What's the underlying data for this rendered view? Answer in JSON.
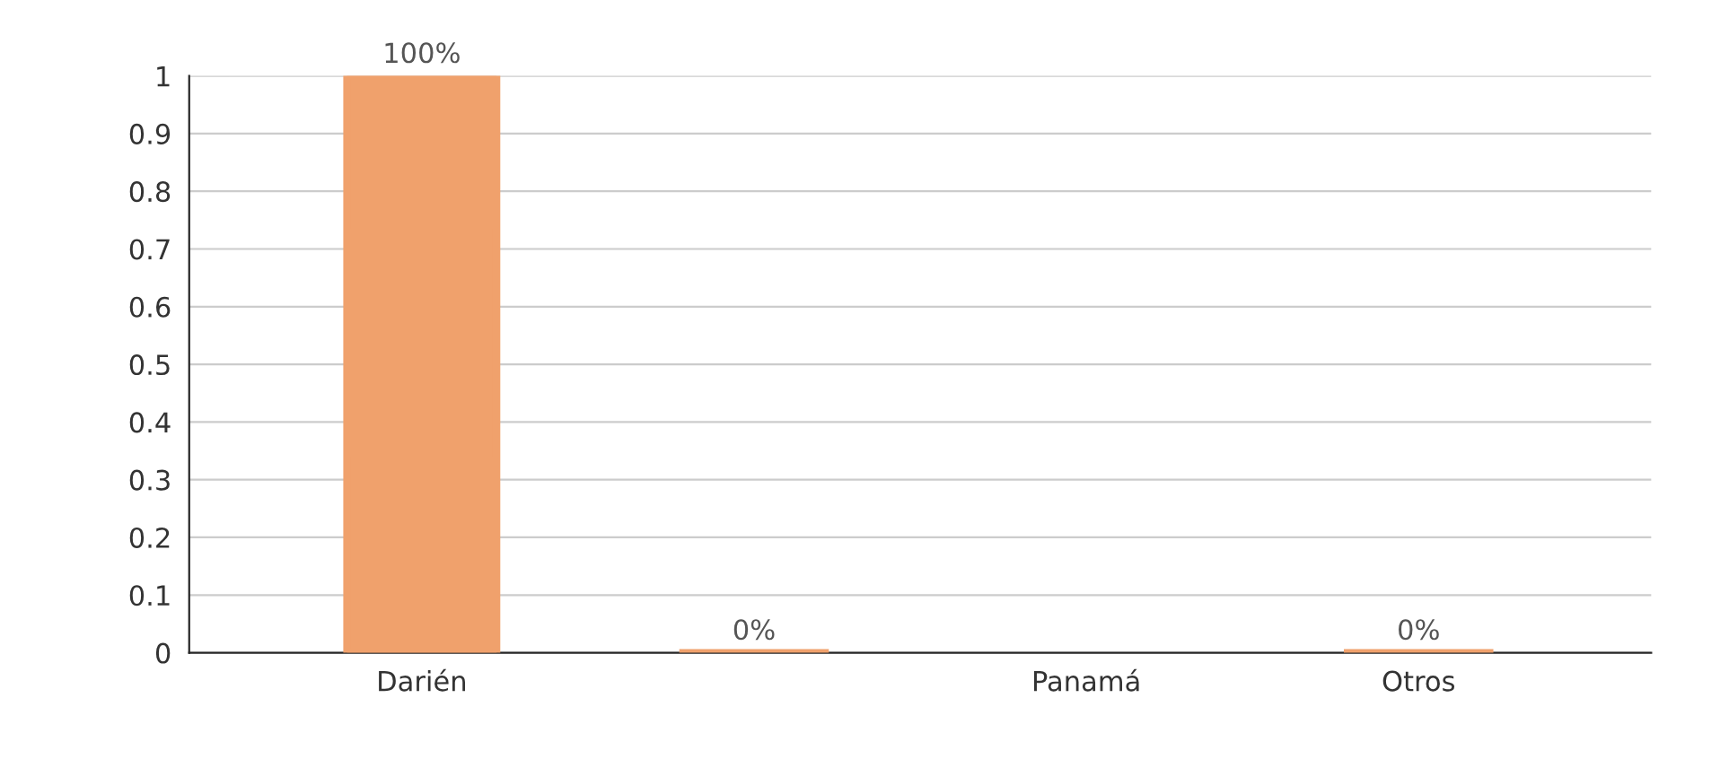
{
  "chart_data": {
    "type": "bar",
    "categories": [
      "Darién",
      null,
      "Panamá",
      "Otros"
    ],
    "values": [
      1,
      0,
      null,
      0
    ],
    "value_labels": [
      "100%",
      "0%",
      null,
      "0%"
    ],
    "color": "#f0a16c",
    "ylim": [
      0,
      1
    ],
    "yticks": [
      0,
      0.1,
      0.2,
      0.3,
      0.4,
      0.5,
      0.6,
      0.7,
      0.8,
      0.9,
      1
    ],
    "grid": "y"
  }
}
